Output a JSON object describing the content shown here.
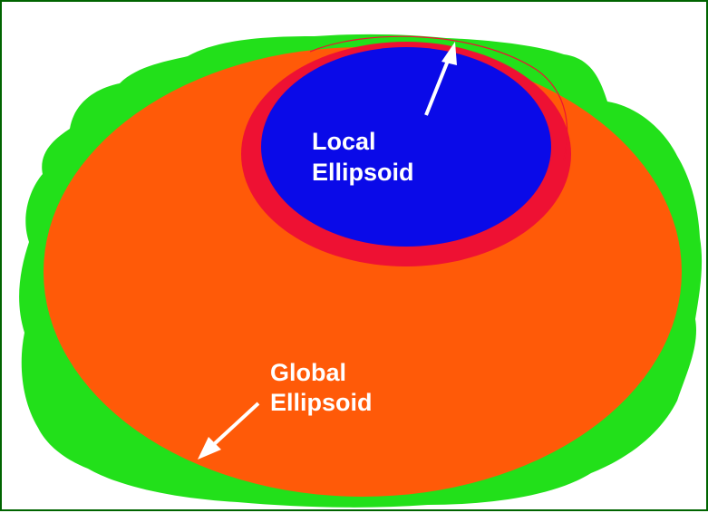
{
  "figure": {
    "colors": {
      "border": "#006400",
      "geoid": "#22e01a",
      "global_ellipsoid": "#ff5a08",
      "local_ring": "#ee1133",
      "local_ellipsoid": "#0a0ae8",
      "label_text": "#ffffff",
      "arrow": "#ffffff"
    },
    "local_label": {
      "line1": "Local",
      "line2": "Ellipsoid"
    },
    "global_label": {
      "line1": "Global",
      "line2": "Ellipsoid"
    }
  }
}
